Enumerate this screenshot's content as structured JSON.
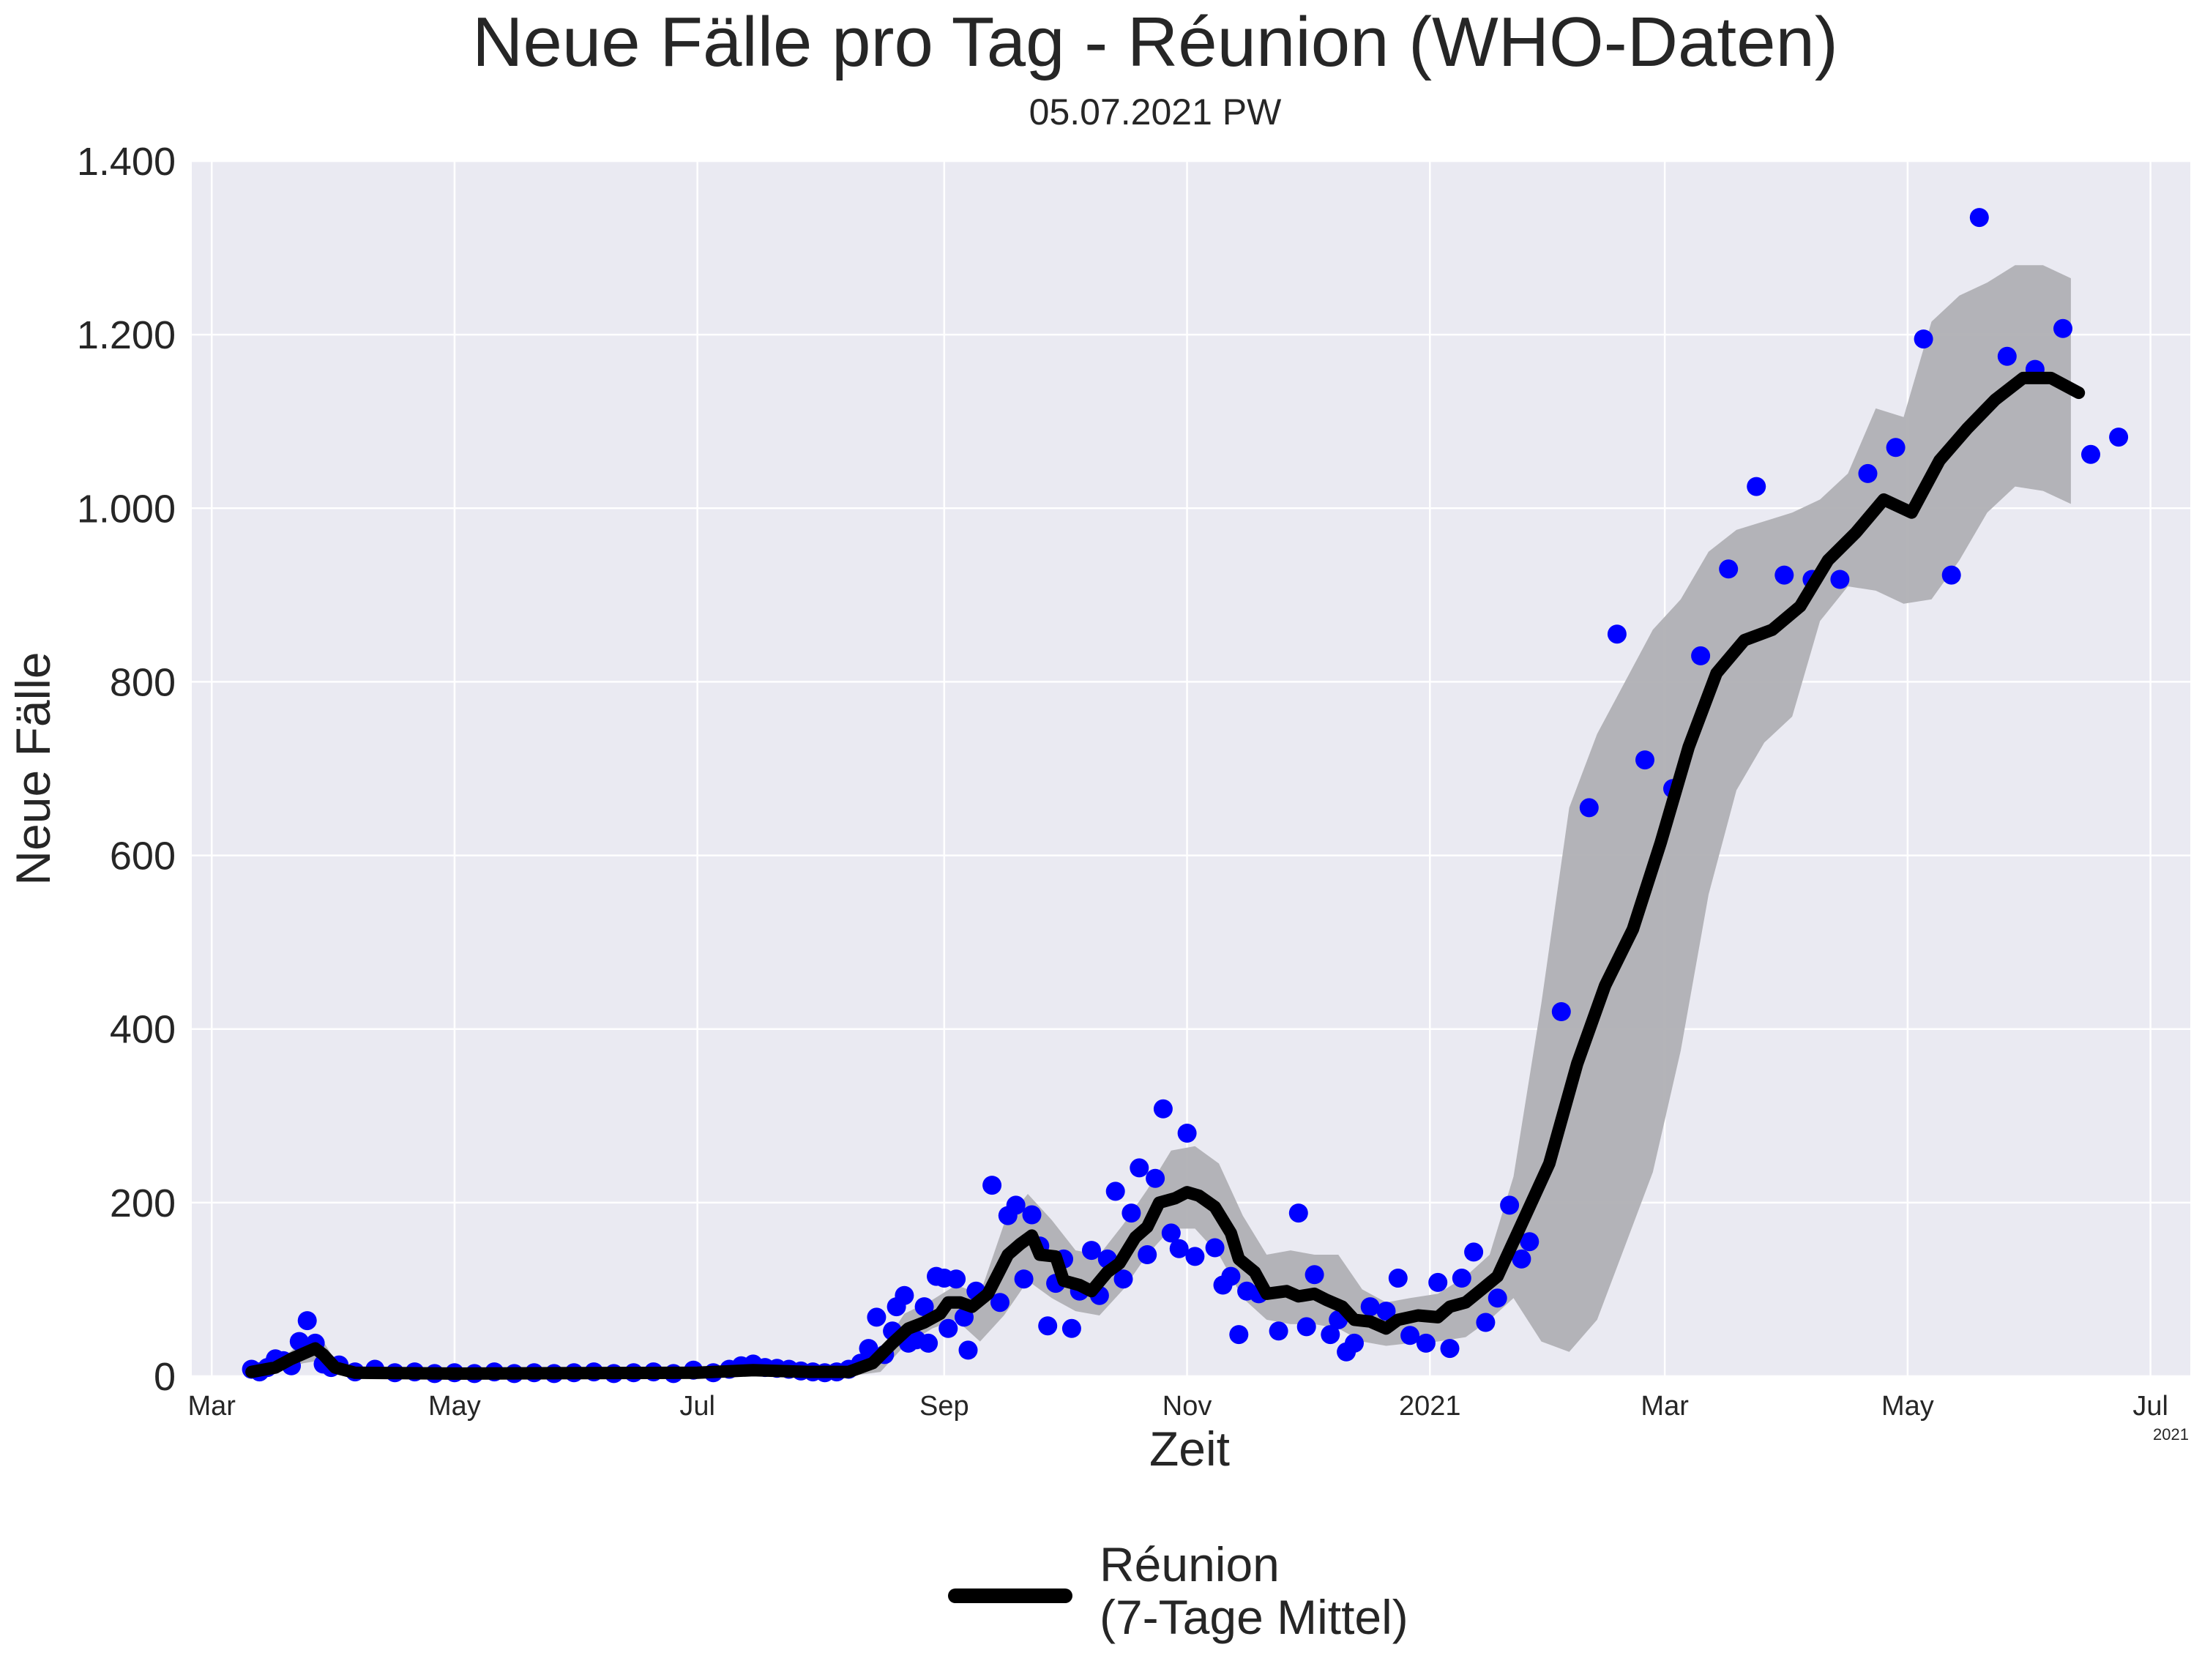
{
  "chart_data": {
    "type": "line",
    "title": "Neue Fälle pro Tag - Réunion (WHO-Daten)",
    "subtitle": "05.07.2021 PW",
    "xlabel": "Zeit",
    "ylabel": "Neue Fälle",
    "x_offset_label": "2021",
    "xlim": [
      "2020-02-25",
      "2021-07-11"
    ],
    "ylim": [
      0,
      1400
    ],
    "grid": true,
    "legend_position": "bottom-center",
    "x_ticks": [
      {
        "date": "2020-03-01",
        "label": "Mar"
      },
      {
        "date": "2020-05-01",
        "label": "May"
      },
      {
        "date": "2020-07-01",
        "label": "Jul"
      },
      {
        "date": "2020-09-01",
        "label": "Sep"
      },
      {
        "date": "2020-11-01",
        "label": "Nov"
      },
      {
        "date": "2021-01-01",
        "label": "2021"
      },
      {
        "date": "2021-03-01",
        "label": "Mar"
      },
      {
        "date": "2021-05-01",
        "label": "May"
      },
      {
        "date": "2021-07-01",
        "label": "Jul"
      }
    ],
    "y_ticks": [
      {
        "value": 0,
        "label": "0"
      },
      {
        "value": 200,
        "label": "200"
      },
      {
        "value": 400,
        "label": "400"
      },
      {
        "value": 600,
        "label": "600"
      },
      {
        "value": 800,
        "label": "800"
      },
      {
        "value": 1000,
        "label": "1.000"
      },
      {
        "value": 1200,
        "label": "1.200"
      },
      {
        "value": 1400,
        "label": "1.400"
      }
    ],
    "colors": {
      "points": "#0000ff",
      "mean_line": "#000000",
      "band": "#b0b0b4",
      "plot_bg": "#eaeaf2",
      "grid": "#ffffff"
    },
    "daily_cases": [
      [
        "2020-03-11",
        8
      ],
      [
        "2020-03-13",
        5
      ],
      [
        "2020-03-15",
        10
      ],
      [
        "2020-03-17",
        20
      ],
      [
        "2020-03-19",
        18
      ],
      [
        "2020-03-21",
        12
      ],
      [
        "2020-03-23",
        40
      ],
      [
        "2020-03-25",
        64
      ],
      [
        "2020-03-27",
        38
      ],
      [
        "2020-03-29",
        14
      ],
      [
        "2020-03-31",
        10
      ],
      [
        "2020-04-02",
        13
      ],
      [
        "2020-04-06",
        5
      ],
      [
        "2020-04-11",
        8
      ],
      [
        "2020-04-16",
        4
      ],
      [
        "2020-04-21",
        5
      ],
      [
        "2020-04-26",
        3
      ],
      [
        "2020-05-01",
        4
      ],
      [
        "2020-05-06",
        3
      ],
      [
        "2020-05-11",
        5
      ],
      [
        "2020-05-16",
        3
      ],
      [
        "2020-05-21",
        4
      ],
      [
        "2020-05-26",
        3
      ],
      [
        "2020-05-31",
        4
      ],
      [
        "2020-06-05",
        5
      ],
      [
        "2020-06-10",
        3
      ],
      [
        "2020-06-15",
        4
      ],
      [
        "2020-06-20",
        5
      ],
      [
        "2020-06-25",
        3
      ],
      [
        "2020-06-30",
        7
      ],
      [
        "2020-07-05",
        4
      ],
      [
        "2020-07-09",
        8
      ],
      [
        "2020-07-12",
        12
      ],
      [
        "2020-07-15",
        14
      ],
      [
        "2020-07-18",
        10
      ],
      [
        "2020-07-21",
        9
      ],
      [
        "2020-07-24",
        8
      ],
      [
        "2020-07-27",
        6
      ],
      [
        "2020-07-30",
        5
      ],
      [
        "2020-08-02",
        4
      ],
      [
        "2020-08-05",
        5
      ],
      [
        "2020-08-08",
        8
      ],
      [
        "2020-08-11",
        15
      ],
      [
        "2020-08-13",
        32
      ],
      [
        "2020-08-15",
        68
      ],
      [
        "2020-08-17",
        25
      ],
      [
        "2020-08-19",
        52
      ],
      [
        "2020-08-20",
        80
      ],
      [
        "2020-08-22",
        93
      ],
      [
        "2020-08-23",
        38
      ],
      [
        "2020-08-25",
        42
      ],
      [
        "2020-08-27",
        80
      ],
      [
        "2020-08-28",
        38
      ],
      [
        "2020-08-30",
        115
      ],
      [
        "2020-09-01",
        113
      ],
      [
        "2020-09-02",
        55
      ],
      [
        "2020-09-04",
        112
      ],
      [
        "2020-09-06",
        68
      ],
      [
        "2020-09-07",
        30
      ],
      [
        "2020-09-09",
        98
      ],
      [
        "2020-09-13",
        220
      ],
      [
        "2020-09-15",
        85
      ],
      [
        "2020-09-17",
        185
      ],
      [
        "2020-09-19",
        197
      ],
      [
        "2020-09-21",
        112
      ],
      [
        "2020-09-23",
        186
      ],
      [
        "2020-09-25",
        150
      ],
      [
        "2020-09-27",
        58
      ],
      [
        "2020-09-29",
        107
      ],
      [
        "2020-10-01",
        135
      ],
      [
        "2020-10-03",
        55
      ],
      [
        "2020-10-05",
        98
      ],
      [
        "2020-10-08",
        145
      ],
      [
        "2020-10-10",
        93
      ],
      [
        "2020-10-12",
        135
      ],
      [
        "2020-10-14",
        213
      ],
      [
        "2020-10-16",
        112
      ],
      [
        "2020-10-18",
        188
      ],
      [
        "2020-10-20",
        240
      ],
      [
        "2020-10-22",
        140
      ],
      [
        "2020-10-24",
        228
      ],
      [
        "2020-10-26",
        308
      ],
      [
        "2020-10-28",
        165
      ],
      [
        "2020-10-30",
        147
      ],
      [
        "2020-11-01",
        280
      ],
      [
        "2020-11-03",
        138
      ],
      [
        "2020-11-08",
        148
      ],
      [
        "2020-11-10",
        105
      ],
      [
        "2020-11-12",
        115
      ],
      [
        "2020-11-14",
        48
      ],
      [
        "2020-11-16",
        98
      ],
      [
        "2020-11-19",
        95
      ],
      [
        "2020-11-24",
        52
      ],
      [
        "2020-11-29",
        188
      ],
      [
        "2020-12-01",
        57
      ],
      [
        "2020-12-03",
        117
      ],
      [
        "2020-12-07",
        48
      ],
      [
        "2020-12-09",
        65
      ],
      [
        "2020-12-11",
        28
      ],
      [
        "2020-12-13",
        38
      ],
      [
        "2020-12-17",
        80
      ],
      [
        "2020-12-21",
        75
      ],
      [
        "2020-12-24",
        113
      ],
      [
        "2020-12-27",
        47
      ],
      [
        "2020-12-31",
        38
      ],
      [
        "2021-01-03",
        108
      ],
      [
        "2021-01-06",
        32
      ],
      [
        "2021-01-09",
        113
      ],
      [
        "2021-01-12",
        143
      ],
      [
        "2021-01-15",
        62
      ],
      [
        "2021-01-18",
        90
      ],
      [
        "2021-01-21",
        197
      ],
      [
        "2021-01-24",
        135
      ],
      [
        "2021-01-26",
        155
      ],
      [
        "2021-02-03",
        420
      ],
      [
        "2021-02-10",
        655
      ],
      [
        "2021-02-17",
        855
      ],
      [
        "2021-02-24",
        710
      ],
      [
        "2021-03-03",
        677
      ],
      [
        "2021-03-10",
        830
      ],
      [
        "2021-03-17",
        930
      ],
      [
        "2021-03-24",
        1025
      ],
      [
        "2021-03-31",
        923
      ],
      [
        "2021-04-07",
        918
      ],
      [
        "2021-04-14",
        918
      ],
      [
        "2021-04-21",
        1040
      ],
      [
        "2021-04-28",
        1070
      ],
      [
        "2021-05-05",
        1195
      ],
      [
        "2021-05-12",
        923
      ],
      [
        "2021-05-19",
        1335
      ],
      [
        "2021-05-26",
        1175
      ],
      [
        "2021-06-02",
        1160
      ],
      [
        "2021-06-09",
        1207
      ],
      [
        "2021-06-16",
        1062
      ],
      [
        "2021-06-23",
        1082
      ]
    ],
    "series": [
      {
        "name": "Réunion\n(7-Tage Mittel)",
        "values": [
          [
            "2020-03-11",
            5
          ],
          [
            "2020-03-17",
            10
          ],
          [
            "2020-03-21",
            20
          ],
          [
            "2020-03-25",
            28
          ],
          [
            "2020-03-27",
            32
          ],
          [
            "2020-03-29",
            25
          ],
          [
            "2020-04-01",
            10
          ],
          [
            "2020-04-06",
            4
          ],
          [
            "2020-05-01",
            3
          ],
          [
            "2020-07-01",
            4
          ],
          [
            "2020-07-15",
            7
          ],
          [
            "2020-07-29",
            5
          ],
          [
            "2020-08-08",
            5
          ],
          [
            "2020-08-14",
            15
          ],
          [
            "2020-08-19",
            38
          ],
          [
            "2020-08-23",
            55
          ],
          [
            "2020-08-27",
            62
          ],
          [
            "2020-08-31",
            72
          ],
          [
            "2020-09-02",
            85
          ],
          [
            "2020-09-05",
            85
          ],
          [
            "2020-09-08",
            80
          ],
          [
            "2020-09-12",
            95
          ],
          [
            "2020-09-17",
            140
          ],
          [
            "2020-09-20",
            152
          ],
          [
            "2020-09-23",
            162
          ],
          [
            "2020-09-25",
            140
          ],
          [
            "2020-09-29",
            138
          ],
          [
            "2020-10-01",
            110
          ],
          [
            "2020-10-05",
            105
          ],
          [
            "2020-10-08",
            98
          ],
          [
            "2020-10-12",
            120
          ],
          [
            "2020-10-15",
            130
          ],
          [
            "2020-10-19",
            160
          ],
          [
            "2020-10-22",
            172
          ],
          [
            "2020-10-25",
            200
          ],
          [
            "2020-10-29",
            205
          ],
          [
            "2020-11-01",
            212
          ],
          [
            "2020-11-04",
            208
          ],
          [
            "2020-11-08",
            195
          ],
          [
            "2020-11-12",
            165
          ],
          [
            "2020-11-14",
            135
          ],
          [
            "2020-11-18",
            120
          ],
          [
            "2020-11-21",
            95
          ],
          [
            "2020-11-26",
            98
          ],
          [
            "2020-11-29",
            92
          ],
          [
            "2020-12-03",
            95
          ],
          [
            "2020-12-06",
            88
          ],
          [
            "2020-12-10",
            80
          ],
          [
            "2020-12-13",
            65
          ],
          [
            "2020-12-17",
            63
          ],
          [
            "2020-12-21",
            55
          ],
          [
            "2020-12-24",
            65
          ],
          [
            "2020-12-29",
            70
          ],
          [
            "2021-01-03",
            68
          ],
          [
            "2021-01-06",
            80
          ],
          [
            "2021-01-10",
            85
          ],
          [
            "2021-01-14",
            100
          ],
          [
            "2021-01-18",
            115
          ],
          [
            "2021-01-24",
            175
          ],
          [
            "2021-01-31",
            245
          ],
          [
            "2021-02-07",
            360
          ],
          [
            "2021-02-14",
            450
          ],
          [
            "2021-02-21",
            515
          ],
          [
            "2021-02-28",
            615
          ],
          [
            "2021-03-07",
            725
          ],
          [
            "2021-03-14",
            810
          ],
          [
            "2021-03-21",
            848
          ],
          [
            "2021-03-28",
            860
          ],
          [
            "2021-04-04",
            887
          ],
          [
            "2021-04-11",
            940
          ],
          [
            "2021-04-18",
            972
          ],
          [
            "2021-04-25",
            1010
          ],
          [
            "2021-05-02",
            995
          ],
          [
            "2021-05-09",
            1055
          ],
          [
            "2021-05-16",
            1092
          ],
          [
            "2021-05-23",
            1125
          ],
          [
            "2021-05-30",
            1150
          ],
          [
            "2021-06-06",
            1150
          ],
          [
            "2021-06-13",
            1133
          ]
        ]
      }
    ],
    "confidence_band": [
      [
        "2020-03-17",
        5,
        15
      ],
      [
        "2020-03-24",
        15,
        40
      ],
      [
        "2020-03-28",
        18,
        48
      ],
      [
        "2020-04-01",
        4,
        18
      ],
      [
        "2020-04-06",
        0,
        8
      ],
      [
        "2020-08-08",
        0,
        8
      ],
      [
        "2020-08-16",
        5,
        30
      ],
      [
        "2020-08-22",
        35,
        72
      ],
      [
        "2020-08-29",
        55,
        88
      ],
      [
        "2020-09-04",
        65,
        105
      ],
      [
        "2020-09-10",
        40,
        95
      ],
      [
        "2020-09-16",
        70,
        175
      ],
      [
        "2020-09-22",
        110,
        210
      ],
      [
        "2020-09-28",
        90,
        180
      ],
      [
        "2020-10-04",
        75,
        145
      ],
      [
        "2020-10-10",
        70,
        140
      ],
      [
        "2020-10-16",
        100,
        175
      ],
      [
        "2020-10-22",
        140,
        215
      ],
      [
        "2020-10-28",
        170,
        260
      ],
      [
        "2020-11-03",
        170,
        265
      ],
      [
        "2020-11-09",
        140,
        245
      ],
      [
        "2020-11-15",
        90,
        185
      ],
      [
        "2020-11-21",
        65,
        140
      ],
      [
        "2020-11-27",
        60,
        145
      ],
      [
        "2020-12-03",
        60,
        140
      ],
      [
        "2020-12-09",
        55,
        140
      ],
      [
        "2020-12-15",
        40,
        100
      ],
      [
        "2020-12-21",
        35,
        85
      ],
      [
        "2020-12-27",
        38,
        90
      ],
      [
        "2021-01-03",
        40,
        95
      ],
      [
        "2021-01-10",
        45,
        115
      ],
      [
        "2021-01-16",
        65,
        140
      ],
      [
        "2021-01-22",
        90,
        230
      ],
      [
        "2021-01-29",
        40,
        430
      ],
      [
        "2021-02-05",
        28,
        655
      ],
      [
        "2021-02-12",
        65,
        740
      ],
      [
        "2021-02-19",
        150,
        800
      ],
      [
        "2021-02-26",
        235,
        860
      ],
      [
        "2021-03-05",
        375,
        895
      ],
      [
        "2021-03-12",
        555,
        950
      ],
      [
        "2021-03-19",
        675,
        975
      ],
      [
        "2021-03-26",
        730,
        985
      ],
      [
        "2021-04-02",
        760,
        995
      ],
      [
        "2021-04-09",
        870,
        1010
      ],
      [
        "2021-04-16",
        910,
        1040
      ],
      [
        "2021-04-23",
        905,
        1115
      ],
      [
        "2021-04-30",
        890,
        1105
      ],
      [
        "2021-05-07",
        895,
        1215
      ],
      [
        "2021-05-14",
        940,
        1245
      ],
      [
        "2021-05-21",
        995,
        1260
      ],
      [
        "2021-05-28",
        1025,
        1280
      ],
      [
        "2021-06-04",
        1020,
        1280
      ],
      [
        "2021-06-11",
        1005,
        1265
      ]
    ]
  }
}
